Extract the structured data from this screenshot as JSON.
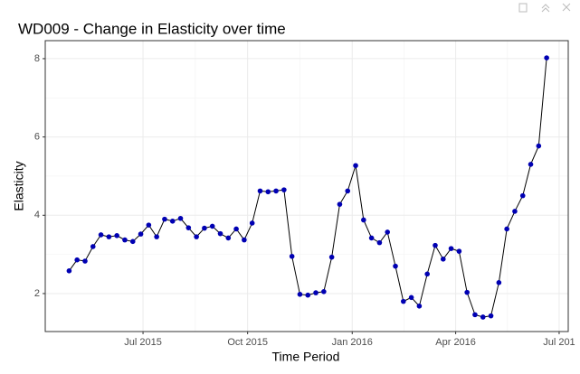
{
  "chart_data": {
    "type": "line",
    "title": "WD009 - Change in Elasticity over time",
    "x_label": "Time Period",
    "y_label": "Elasticity",
    "x": [
      "2015-04-27",
      "2015-05-04",
      "2015-05-11",
      "2015-05-18",
      "2015-05-25",
      "2015-06-01",
      "2015-06-08",
      "2015-06-15",
      "2015-06-22",
      "2015-06-29",
      "2015-07-06",
      "2015-07-13",
      "2015-07-20",
      "2015-07-27",
      "2015-08-03",
      "2015-08-10",
      "2015-08-17",
      "2015-08-24",
      "2015-08-31",
      "2015-09-07",
      "2015-09-14",
      "2015-09-21",
      "2015-09-28",
      "2015-10-05",
      "2015-10-12",
      "2015-10-19",
      "2015-10-26",
      "2015-11-02",
      "2015-11-09",
      "2015-11-16",
      "2015-11-23",
      "2015-11-30",
      "2015-12-07",
      "2015-12-14",
      "2015-12-21",
      "2015-12-28",
      "2016-01-04",
      "2016-01-11",
      "2016-01-18",
      "2016-01-25",
      "2016-02-01",
      "2016-02-08",
      "2016-02-15",
      "2016-02-22",
      "2016-02-29",
      "2016-03-07",
      "2016-03-14",
      "2016-03-21",
      "2016-03-28",
      "2016-04-04",
      "2016-04-11",
      "2016-04-18",
      "2016-04-25",
      "2016-05-02",
      "2016-05-09",
      "2016-05-16",
      "2016-05-23",
      "2016-05-30",
      "2016-06-06",
      "2016-06-13",
      "2016-06-20"
    ],
    "series": [
      {
        "name": "Elasticity",
        "color": "#0000b3",
        "line_color": "#000000",
        "values": [
          2.58,
          2.86,
          2.83,
          3.2,
          3.5,
          3.45,
          3.48,
          3.37,
          3.33,
          3.52,
          3.75,
          3.45,
          3.9,
          3.85,
          3.92,
          3.68,
          3.45,
          3.67,
          3.72,
          3.53,
          3.42,
          3.65,
          3.37,
          3.8,
          4.62,
          4.6,
          4.62,
          4.65,
          2.95,
          1.98,
          1.96,
          2.02,
          2.05,
          2.93,
          4.28,
          4.62,
          5.27,
          3.88,
          3.42,
          3.3,
          3.57,
          2.7,
          1.8,
          1.9,
          1.68,
          2.5,
          3.23,
          2.88,
          3.15,
          3.08,
          2.03,
          1.46,
          1.4,
          1.43,
          2.28,
          3.65,
          4.1,
          4.5,
          5.3,
          5.77,
          8.02
        ]
      }
    ],
    "xlim": [
      "2015-04-06",
      "2016-07-09"
    ],
    "xticks": [
      {
        "value": "2015-07-01",
        "label": "Jul 2015"
      },
      {
        "value": "2015-10-01",
        "label": "Oct 2015"
      },
      {
        "value": "2016-01-01",
        "label": "Jan 2016"
      },
      {
        "value": "2016-04-01",
        "label": "Apr 2016"
      },
      {
        "value": "2016-07-01",
        "label": "Jul 201"
      }
    ],
    "ylim": [
      1.03,
      8.46
    ],
    "yticks": [
      2,
      4,
      6,
      8
    ],
    "grid": true
  }
}
